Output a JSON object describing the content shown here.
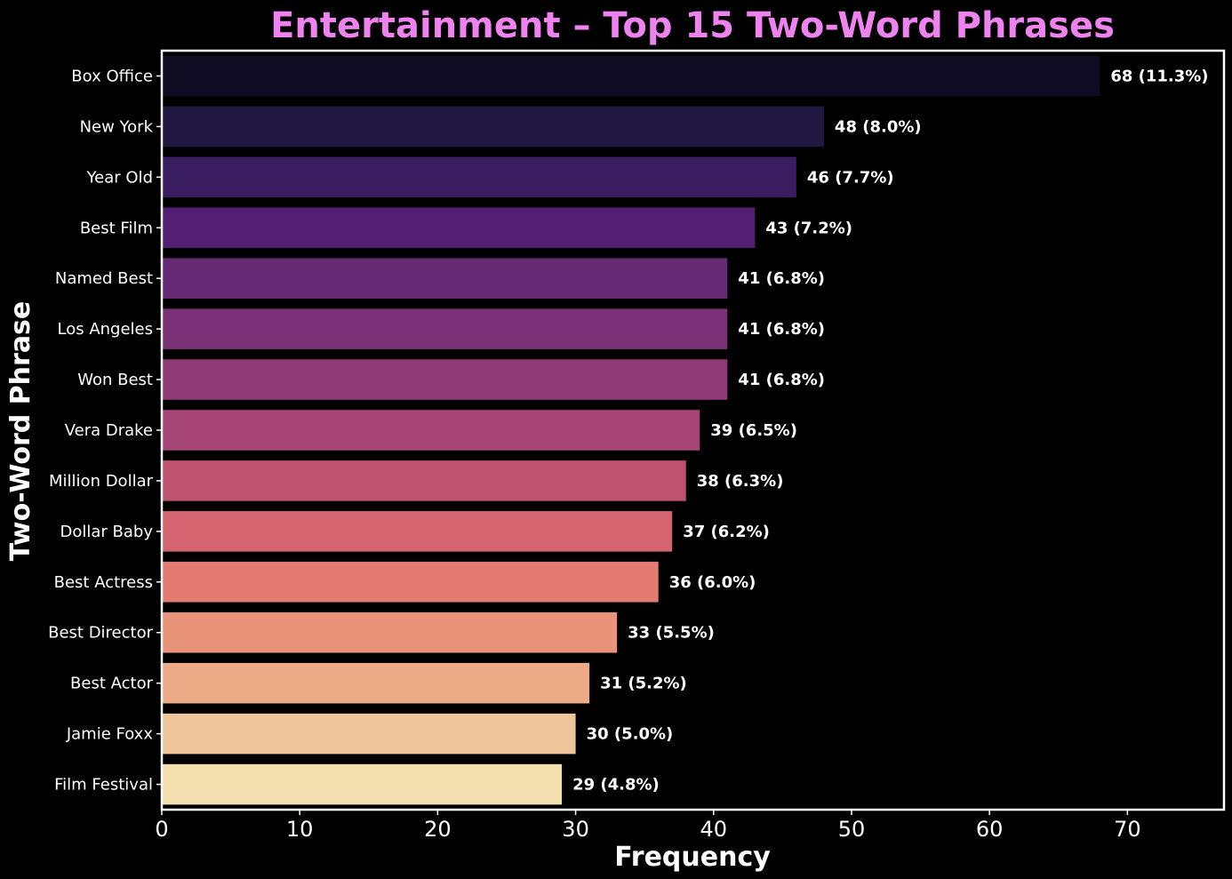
{
  "chart_data": {
    "type": "bar",
    "orientation": "horizontal",
    "title": "Entertainment – Top 15 Two-Word Phrases",
    "xlabel": "Frequency",
    "ylabel": "Two-Word Phrase",
    "xlim": [
      0,
      77
    ],
    "xticks": [
      0,
      10,
      20,
      30,
      40,
      50,
      60,
      70
    ],
    "grid": false,
    "legend": "none",
    "categories": [
      "Box Office",
      "New York",
      "Year Old",
      "Best Film",
      "Named Best",
      "Los Angeles",
      "Won Best",
      "Vera Drake",
      "Million Dollar",
      "Dollar Baby",
      "Best Actress",
      "Best Director",
      "Best Actor",
      "Jamie Foxx",
      "Film Festival"
    ],
    "values": [
      68,
      48,
      46,
      43,
      41,
      41,
      41,
      39,
      38,
      37,
      36,
      33,
      31,
      30,
      29
    ],
    "data_labels": [
      "68 (11.3%)",
      "48 (8.0%)",
      "46 (7.7%)",
      "43 (7.2%)",
      "41 (6.8%)",
      "41 (6.8%)",
      "41 (6.8%)",
      "39 (6.5%)",
      "38 (6.3%)",
      "37 (6.2%)",
      "36 (6.0%)",
      "33 (5.5%)",
      "31 (5.2%)",
      "30 (5.0%)",
      "29 (4.8%)"
    ],
    "colors": [
      "#0e0b22",
      "#211842",
      "#3a1c60",
      "#521f73",
      "#662a75",
      "#7a3176",
      "#8f3a76",
      "#a74676",
      "#bf5171",
      "#d4646f",
      "#e37b72",
      "#e9937a",
      "#ecaa86",
      "#efc59b",
      "#f3e0b0"
    ]
  },
  "theme": {
    "background": "#000000",
    "title_color": "#ee82ee",
    "text_color": "#ffffff",
    "axis_color": "#ffffff"
  }
}
